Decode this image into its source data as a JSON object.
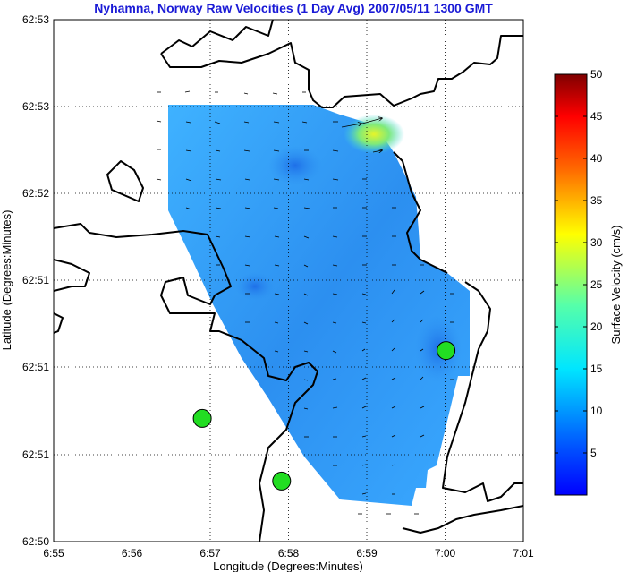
{
  "title": "Nyhamna, Norway Raw Velocities (1 Day Avg) 2007/05/11 1300 GMT",
  "chart_data": {
    "type": "map",
    "xlabel": "Longitude (Degrees:Minutes)",
    "ylabel": "Latitude (Degrees:Minutes)",
    "x_ticks": [
      "6:55",
      "6:56",
      "6:57",
      "6:58",
      "6:59",
      "7:00",
      "7:01"
    ],
    "y_ticks": [
      "62:50",
      "62:51",
      "62:51",
      "62:51",
      "62:52",
      "62:53",
      "62:53"
    ],
    "grid": "dotted",
    "colorbar": {
      "label": "Surface Velocity (cm/s)",
      "min": 0,
      "max": 50,
      "ticks": [
        "5",
        "10",
        "15",
        "20",
        "25",
        "30",
        "35",
        "40",
        "45",
        "50"
      ],
      "colormap": "jet"
    },
    "sites": [
      {
        "marker": "green-circle",
        "lon": 6.9483,
        "lat": 62.8451
      },
      {
        "marker": "green-circle",
        "lon": 6.9652,
        "lat": 62.8391
      },
      {
        "marker": "green-circle",
        "lon": 7.0002,
        "lat": 62.8516
      }
    ],
    "colors": {
      "title": "#1a1ad6",
      "land_outline": "#000000",
      "site": "#22dd22",
      "background": "#ffffff"
    }
  }
}
